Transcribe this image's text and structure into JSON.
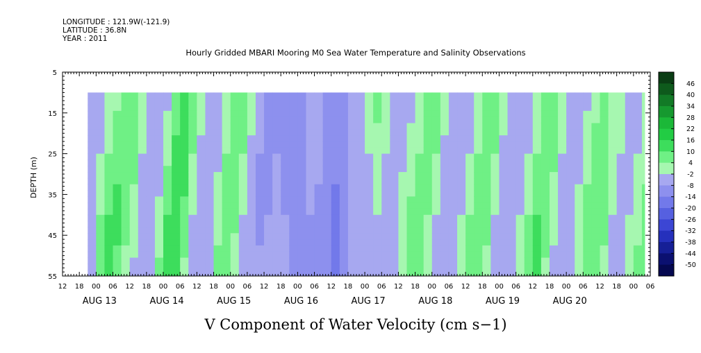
{
  "header": {
    "longitude": "LONGITUDE : 121.9W(-121.9)",
    "latitude": "LATITUDE : 36.8N",
    "year": "YEAR : 2011"
  },
  "chart_data": {
    "type": "heatmap",
    "title": "Hourly Gridded MBARI Mooring M0 Sea Water Temperature and Salinity Observations",
    "xlabel": "V Component of Water Velocity (cm s−1)",
    "ylabel": "DEPTH (m)",
    "y_ticks": [
      "5",
      "15",
      "25",
      "35",
      "45",
      "55"
    ],
    "ylim": [
      5,
      55
    ],
    "y_inverted": true,
    "x_range_hours": [
      0,
      210
    ],
    "x_hour_labels": [
      "12",
      "18",
      "00",
      "06",
      "12",
      "18",
      "00",
      "06",
      "12",
      "18",
      "00",
      "06",
      "12",
      "18",
      "00",
      "06",
      "12",
      "18",
      "00",
      "06",
      "12",
      "18",
      "00",
      "06",
      "12",
      "18",
      "00",
      "06",
      "12",
      "18",
      "00",
      "06",
      "12",
      "18",
      "00",
      "06"
    ],
    "x_day_labels": [
      "AUG 13",
      "AUG 14",
      "AUG 15",
      "AUG 16",
      "AUG 17",
      "AUG 18",
      "AUG 19",
      "AUG 20"
    ],
    "data_extent": {
      "hour_start": 9,
      "hour_end": 208,
      "depth_top": 10,
      "depth_bottom": 55
    },
    "colorbar": {
      "levels": [
        "46",
        "40",
        "34",
        "28",
        "22",
        "16",
        "10",
        "4",
        "-2",
        "-8",
        "-14",
        "-20",
        "-26",
        "-32",
        "-38",
        "-44",
        "-50"
      ],
      "colors": [
        "#0a3d14",
        "#0e5a1c",
        "#127a26",
        "#16992f",
        "#1bb838",
        "#22cc44",
        "#3ddd5c",
        "#6ff085",
        "#a6f7b0",
        "#a7a8f0",
        "#8d90ee",
        "#7279ea",
        "#5660e0",
        "#3c46d4",
        "#2530bc",
        "#161f96",
        "#0b1070",
        "#050850"
      ]
    },
    "velocity_profile_samples": {
      "hours": [
        9,
        12,
        15,
        18,
        21,
        24,
        27,
        30,
        33,
        36,
        39,
        42,
        45,
        48,
        51,
        54,
        57,
        60,
        63,
        66,
        69,
        72,
        75,
        78,
        81,
        84,
        87,
        90,
        93,
        96,
        99,
        102,
        105,
        108,
        111,
        114,
        117,
        120,
        123,
        126,
        129,
        132,
        135,
        138,
        141,
        144,
        147,
        150,
        153,
        156,
        159,
        162,
        165,
        168,
        171,
        174,
        177,
        180,
        183,
        186,
        189,
        192,
        195,
        198,
        201,
        204,
        207
      ],
      "depths": [
        10,
        25,
        40,
        55
      ],
      "values": [
        [
          -6,
          -8,
          -4,
          -2
        ],
        [
          -4,
          -2,
          4,
          8
        ],
        [
          -2,
          4,
          10,
          12
        ],
        [
          2,
          8,
          12,
          8
        ],
        [
          6,
          10,
          6,
          2
        ],
        [
          8,
          6,
          2,
          -4
        ],
        [
          4,
          -2,
          -6,
          -8
        ],
        [
          -4,
          -8,
          -8,
          -4
        ],
        [
          -8,
          -6,
          0,
          6
        ],
        [
          -4,
          2,
          10,
          14
        ],
        [
          4,
          12,
          16,
          10
        ],
        [
          10,
          14,
          8,
          2
        ],
        [
          8,
          4,
          -2,
          -6
        ],
        [
          2,
          -4,
          -8,
          -8
        ],
        [
          -4,
          -8,
          -6,
          -2
        ],
        [
          -8,
          -4,
          2,
          6
        ],
        [
          -2,
          4,
          10,
          8
        ],
        [
          6,
          10,
          6,
          0
        ],
        [
          8,
          4,
          -2,
          -6
        ],
        [
          2,
          -4,
          -8,
          -8
        ],
        [
          -4,
          -8,
          -10,
          -6
        ],
        [
          -8,
          -10,
          -8,
          -4
        ],
        [
          -12,
          -8,
          -4,
          -2
        ],
        [
          -14,
          -10,
          -8,
          -6
        ],
        [
          -10,
          -12,
          -10,
          -8
        ],
        [
          -8,
          -10,
          -12,
          -10
        ],
        [
          -6,
          -4,
          -8,
          -12
        ],
        [
          -4,
          -6,
          -10,
          -12
        ],
        [
          -8,
          -10,
          -14,
          -12
        ],
        [
          -10,
          -12,
          -16,
          -14
        ],
        [
          -8,
          -10,
          -12,
          -10
        ],
        [
          -6,
          -8,
          -6,
          -4
        ],
        [
          -4,
          -6,
          -8,
          -6
        ],
        [
          2,
          -2,
          -4,
          -6
        ],
        [
          6,
          2,
          -2,
          -4
        ],
        [
          4,
          -2,
          -6,
          -8
        ],
        [
          -2,
          -6,
          -8,
          -6
        ],
        [
          -6,
          -4,
          2,
          4
        ],
        [
          -4,
          0,
          6,
          8
        ],
        [
          0,
          4,
          8,
          6
        ],
        [
          6,
          8,
          4,
          0
        ],
        [
          8,
          4,
          -2,
          -6
        ],
        [
          2,
          -4,
          -8,
          -8
        ],
        [
          -4,
          -8,
          -6,
          -4
        ],
        [
          -8,
          -6,
          -2,
          2
        ],
        [
          -6,
          -2,
          4,
          8
        ],
        [
          -2,
          4,
          8,
          10
        ],
        [
          4,
          8,
          6,
          2
        ],
        [
          6,
          4,
          -2,
          -6
        ],
        [
          2,
          -4,
          -8,
          -8
        ],
        [
          -4,
          -8,
          -6,
          -2
        ],
        [
          -8,
          -6,
          -2,
          4
        ],
        [
          -6,
          -2,
          4,
          10
        ],
        [
          -2,
          4,
          10,
          12
        ],
        [
          4,
          10,
          8,
          2
        ],
        [
          8,
          6,
          0,
          -4
        ],
        [
          4,
          -2,
          -6,
          -8
        ],
        [
          -2,
          -6,
          -8,
          -6
        ],
        [
          -6,
          -4,
          0,
          4
        ],
        [
          -4,
          2,
          6,
          10
        ],
        [
          2,
          6,
          10,
          8
        ],
        [
          6,
          8,
          6,
          2
        ],
        [
          4,
          2,
          -2,
          -4
        ],
        [
          0,
          -2,
          -4,
          -2
        ],
        [
          -2,
          -4,
          -2,
          2
        ],
        [
          -4,
          -2,
          2,
          6
        ],
        [
          -2,
          2,
          6,
          8
        ]
      ]
    }
  }
}
